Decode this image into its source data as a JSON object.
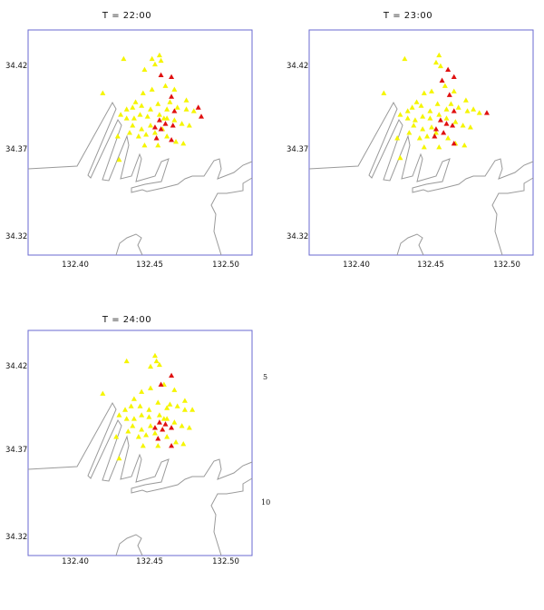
{
  "figure": {
    "stray_labels": [
      "5",
      "10"
    ]
  },
  "axes": {
    "y_ticks": [
      "34.42",
      "34.37",
      "34.32"
    ],
    "x_ticks": [
      "132.40",
      "132.45",
      "132.50"
    ]
  },
  "colors": {
    "frame": "#6a6ad0",
    "coast": "#9a9a9a",
    "safe": "#f5f500",
    "danger": "#e01010"
  },
  "panels": [
    {
      "title": "T = 22:00",
      "yellow": [
        [
          132.434,
          34.419
        ],
        [
          132.448,
          34.413
        ],
        [
          132.453,
          34.419
        ],
        [
          132.458,
          34.421
        ],
        [
          132.459,
          34.418
        ],
        [
          132.455,
          34.416
        ],
        [
          132.42,
          34.4
        ],
        [
          132.442,
          34.395
        ],
        [
          132.447,
          34.4
        ],
        [
          132.453,
          34.402
        ],
        [
          132.462,
          34.404
        ],
        [
          132.468,
          34.402
        ],
        [
          132.476,
          34.396
        ],
        [
          132.481,
          34.39
        ],
        [
          132.476,
          34.391
        ],
        [
          132.47,
          34.392
        ],
        [
          132.463,
          34.391
        ],
        [
          132.457,
          34.394
        ],
        [
          132.452,
          34.391
        ],
        [
          132.446,
          34.393
        ],
        [
          132.44,
          34.392
        ],
        [
          132.436,
          34.391
        ],
        [
          132.432,
          34.388
        ],
        [
          132.436,
          34.386
        ],
        [
          132.441,
          34.386
        ],
        [
          132.445,
          34.388
        ],
        [
          132.45,
          34.387
        ],
        [
          132.458,
          34.388
        ],
        [
          132.463,
          34.386
        ],
        [
          132.468,
          34.385
        ],
        [
          132.473,
          34.383
        ],
        [
          132.478,
          34.382
        ],
        [
          132.44,
          34.382
        ],
        [
          132.446,
          34.38
        ],
        [
          132.452,
          34.382
        ],
        [
          132.449,
          34.377
        ],
        [
          132.444,
          34.376
        ],
        [
          132.438,
          34.378
        ],
        [
          132.43,
          34.376
        ],
        [
          132.455,
          34.378
        ],
        [
          132.463,
          34.376
        ],
        [
          132.469,
          34.373
        ],
        [
          132.474,
          34.372
        ],
        [
          132.457,
          34.371
        ],
        [
          132.448,
          34.371
        ],
        [
          132.46,
          34.38
        ],
        [
          132.465,
          34.395
        ],
        [
          132.461,
          34.386
        ],
        [
          132.431,
          34.363
        ]
      ],
      "red": [
        [
          132.459,
          34.41
        ],
        [
          132.466,
          34.409
        ],
        [
          132.466,
          34.398
        ],
        [
          132.484,
          34.392
        ],
        [
          132.486,
          34.387
        ],
        [
          132.458,
          34.385
        ],
        [
          132.462,
          34.383
        ],
        [
          132.455,
          34.381
        ],
        [
          132.459,
          34.38
        ],
        [
          132.467,
          34.382
        ],
        [
          132.468,
          34.39
        ],
        [
          132.456,
          34.375
        ],
        [
          132.466,
          34.374
        ]
      ]
    },
    {
      "title": "T = 23:00",
      "yellow": [
        [
          132.434,
          34.419
        ],
        [
          132.457,
          34.421
        ],
        [
          132.455,
          34.417
        ],
        [
          132.458,
          34.415
        ],
        [
          132.42,
          34.4
        ],
        [
          132.442,
          34.395
        ],
        [
          132.447,
          34.4
        ],
        [
          132.452,
          34.401
        ],
        [
          132.461,
          34.404
        ],
        [
          132.467,
          34.401
        ],
        [
          132.475,
          34.396
        ],
        [
          132.48,
          34.391
        ],
        [
          132.476,
          34.39
        ],
        [
          132.47,
          34.392
        ],
        [
          132.462,
          34.391
        ],
        [
          132.456,
          34.394
        ],
        [
          132.451,
          34.39
        ],
        [
          132.445,
          34.393
        ],
        [
          132.439,
          34.392
        ],
        [
          132.436,
          34.39
        ],
        [
          132.431,
          34.388
        ],
        [
          132.436,
          34.386
        ],
        [
          132.441,
          34.385
        ],
        [
          132.446,
          34.387
        ],
        [
          132.451,
          34.386
        ],
        [
          132.457,
          34.388
        ],
        [
          132.462,
          34.386
        ],
        [
          132.468,
          34.384
        ],
        [
          132.473,
          34.382
        ],
        [
          132.478,
          34.381
        ],
        [
          132.44,
          34.382
        ],
        [
          132.446,
          34.38
        ],
        [
          132.452,
          34.381
        ],
        [
          132.449,
          34.376
        ],
        [
          132.444,
          34.375
        ],
        [
          132.437,
          34.378
        ],
        [
          132.429,
          34.375
        ],
        [
          132.455,
          34.378
        ],
        [
          132.463,
          34.375
        ],
        [
          132.468,
          34.372
        ],
        [
          132.474,
          34.371
        ],
        [
          132.457,
          34.37
        ],
        [
          132.447,
          34.37
        ],
        [
          132.465,
          34.394
        ],
        [
          132.431,
          34.364
        ],
        [
          132.484,
          34.389
        ]
      ],
      "red": [
        [
          132.463,
          34.413
        ],
        [
          132.467,
          34.409
        ],
        [
          132.459,
          34.407
        ],
        [
          132.464,
          34.399
        ],
        [
          132.489,
          34.389
        ],
        [
          132.458,
          34.385
        ],
        [
          132.462,
          34.383
        ],
        [
          132.455,
          34.38
        ],
        [
          132.46,
          34.378
        ],
        [
          132.466,
          34.382
        ],
        [
          132.467,
          34.39
        ],
        [
          132.454,
          34.376
        ],
        [
          132.467,
          34.372
        ]
      ]
    },
    {
      "title": "T = 24:00",
      "yellow": [
        [
          132.436,
          34.418
        ],
        [
          132.455,
          34.421
        ],
        [
          132.456,
          34.418
        ],
        [
          132.458,
          34.416
        ],
        [
          132.452,
          34.415
        ],
        [
          132.42,
          34.4
        ],
        [
          132.441,
          34.397
        ],
        [
          132.446,
          34.401
        ],
        [
          132.452,
          34.403
        ],
        [
          132.461,
          34.405
        ],
        [
          132.468,
          34.402
        ],
        [
          132.475,
          34.396
        ],
        [
          132.48,
          34.391
        ],
        [
          132.475,
          34.391
        ],
        [
          132.47,
          34.393
        ],
        [
          132.463,
          34.392
        ],
        [
          132.457,
          34.395
        ],
        [
          132.451,
          34.391
        ],
        [
          132.445,
          34.393
        ],
        [
          132.439,
          34.393
        ],
        [
          132.435,
          34.391
        ],
        [
          132.431,
          34.388
        ],
        [
          132.436,
          34.386
        ],
        [
          132.441,
          34.386
        ],
        [
          132.446,
          34.388
        ],
        [
          132.451,
          34.387
        ],
        [
          132.458,
          34.388
        ],
        [
          132.463,
          34.386
        ],
        [
          132.468,
          34.384
        ],
        [
          132.473,
          34.382
        ],
        [
          132.478,
          34.381
        ],
        [
          132.44,
          34.382
        ],
        [
          132.446,
          34.38
        ],
        [
          132.452,
          34.382
        ],
        [
          132.449,
          34.377
        ],
        [
          132.444,
          34.376
        ],
        [
          132.437,
          34.379
        ],
        [
          132.429,
          34.376
        ],
        [
          132.455,
          34.378
        ],
        [
          132.463,
          34.376
        ],
        [
          132.469,
          34.373
        ],
        [
          132.474,
          34.372
        ],
        [
          132.457,
          34.371
        ],
        [
          132.447,
          34.371
        ],
        [
          132.46,
          34.38
        ],
        [
          132.465,
          34.394
        ],
        [
          132.461,
          34.386
        ],
        [
          132.431,
          34.364
        ]
      ],
      "red": [
        [
          132.466,
          34.41
        ],
        [
          132.459,
          34.405
        ],
        [
          132.458,
          34.384
        ],
        [
          132.462,
          34.383
        ],
        [
          132.455,
          34.381
        ],
        [
          132.46,
          34.38
        ],
        [
          132.466,
          34.381
        ],
        [
          132.457,
          34.375
        ],
        [
          132.466,
          34.371
        ]
      ]
    }
  ]
}
